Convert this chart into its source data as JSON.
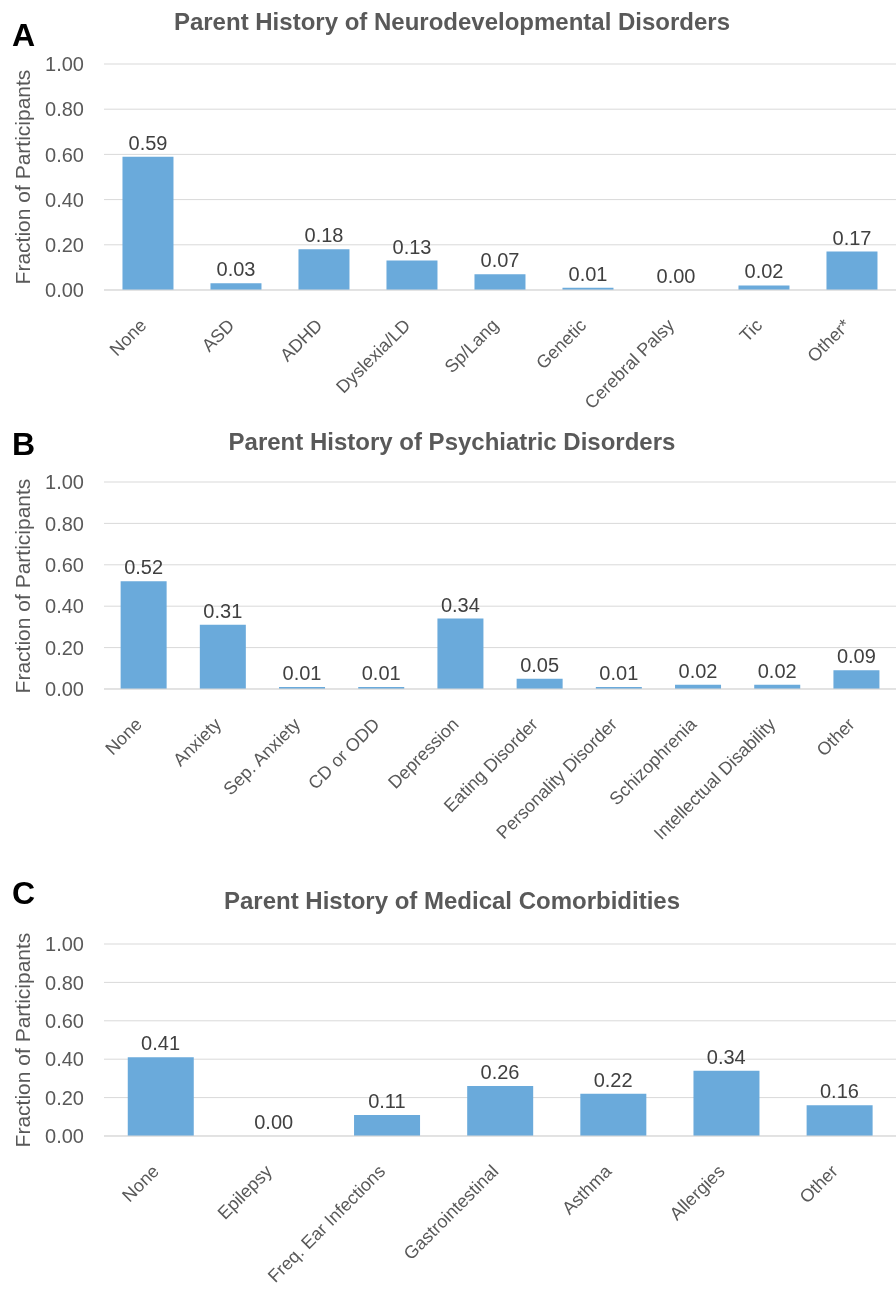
{
  "chart_data": [
    {
      "type": "bar",
      "title": "Parent History of Neurodevelopmental Disorders",
      "ylabel": "Fraction of Participants",
      "annotations": [
        "A"
      ],
      "categories": [
        "None",
        "ASD",
        "ADHD",
        "Dyslexia/LD",
        "Sp/Lang",
        "Genetic",
        "Cerebral Palsy",
        "Tic",
        "Other*"
      ],
      "values": [
        0.59,
        0.03,
        0.18,
        0.13,
        0.07,
        0.01,
        0.0,
        0.02,
        0.17
      ],
      "value_labels": [
        "0.59",
        "0.03",
        "0.18",
        "0.13",
        "0.07",
        "0.01",
        "0.00",
        "0.02",
        "0.17"
      ],
      "color": "#6aaadb",
      "ylim": [
        0,
        1
      ],
      "yticks": [
        {
          "value": 0,
          "label": "0.00"
        },
        {
          "value": 0.2,
          "label": "0.20"
        },
        {
          "value": 0.4,
          "label": "0.40"
        },
        {
          "value": 0.6,
          "label": "0.60"
        },
        {
          "value": 0.8,
          "label": "0.80"
        },
        {
          "value": 1,
          "label": "1.00"
        }
      ],
      "grid": "y"
    },
    {
      "type": "bar",
      "title": "Parent History of Psychiatric Disorders",
      "ylabel": "Fraction of Participants",
      "annotations": [
        "B"
      ],
      "categories": [
        "None",
        "Anxiety",
        "Sep. Anxiety",
        "CD or ODD",
        "Depression",
        "Eating Disorder",
        "Personality Disorder",
        "Schizophrenia",
        "Intellectual Disability",
        "Other"
      ],
      "values": [
        0.52,
        0.31,
        0.01,
        0.01,
        0.34,
        0.05,
        0.01,
        0.02,
        0.02,
        0.09
      ],
      "value_labels": [
        "0.52",
        "0.31",
        "0.01",
        "0.01",
        "0.34",
        "0.05",
        "0.01",
        "0.02",
        "0.02",
        "0.09"
      ],
      "color": "#6aaadb",
      "ylim": [
        0,
        1
      ],
      "yticks": [
        {
          "value": 0,
          "label": "0.00"
        },
        {
          "value": 0.2,
          "label": "0.20"
        },
        {
          "value": 0.4,
          "label": "0.40"
        },
        {
          "value": 0.6,
          "label": "0.60"
        },
        {
          "value": 0.8,
          "label": "0.80"
        },
        {
          "value": 1,
          "label": "1.00"
        }
      ],
      "grid": "y"
    },
    {
      "type": "bar",
      "title": "Parent History of Medical Comorbidities",
      "ylabel": "Fraction of Participants",
      "annotations": [
        "C"
      ],
      "categories": [
        "None",
        "Epilepsy",
        "Freq. Ear Infections",
        "Gastrointestinal",
        "Asthma",
        "Allergies",
        "Other"
      ],
      "values": [
        0.41,
        0.0,
        0.11,
        0.26,
        0.22,
        0.34,
        0.16
      ],
      "value_labels": [
        "0.41",
        "0.00",
        "0.11",
        "0.26",
        "0.22",
        "0.34",
        "0.16"
      ],
      "color": "#6aaadb",
      "ylim": [
        0,
        1
      ],
      "yticks": [
        {
          "value": 0,
          "label": "0.00"
        },
        {
          "value": 0.2,
          "label": "0.20"
        },
        {
          "value": 0.4,
          "label": "0.40"
        },
        {
          "value": 0.6,
          "label": "0.60"
        },
        {
          "value": 0.8,
          "label": "0.80"
        },
        {
          "value": 1,
          "label": "1.00"
        }
      ],
      "grid": "y"
    }
  ]
}
